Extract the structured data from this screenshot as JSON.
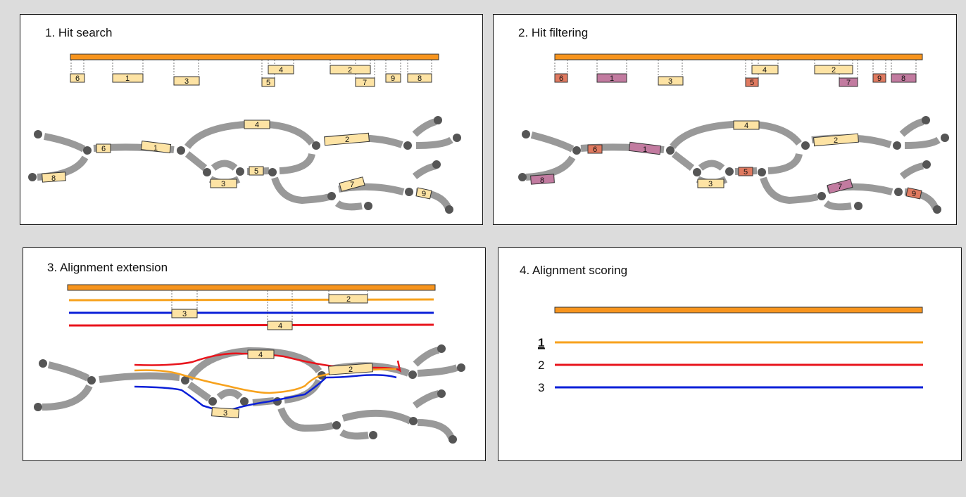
{
  "colors": {
    "query": "#f7941d",
    "hit": "#fde3a4",
    "hit_filtered_red": "#e07a60",
    "hit_filtered_purple": "#c27ba0",
    "graph": "#999999",
    "node": "#555555",
    "aln_orange": "#f7a21d",
    "aln_red": "#e8141c",
    "aln_blue": "#0a1fd8"
  },
  "panels": {
    "p1": {
      "title": "1. Hit search"
    },
    "p2": {
      "title": "2. Hit filtering"
    },
    "p3": {
      "title": "3. Alignment extension"
    },
    "p4": {
      "title": "4. Alignment scoring"
    }
  },
  "hits": {
    "h1": "1",
    "h2": "2",
    "h3": "3",
    "h4": "4",
    "h5": "5",
    "h6": "6",
    "h7": "7",
    "h8": "8",
    "h9": "9"
  },
  "scoring": {
    "rank1": "1",
    "rank2": "2",
    "rank3": "3"
  }
}
